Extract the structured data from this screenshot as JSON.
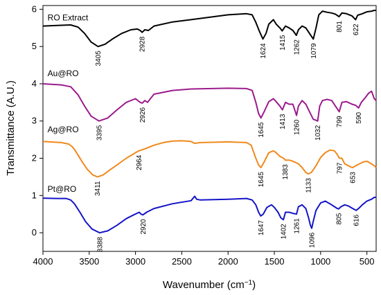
{
  "chart_data": {
    "type": "line",
    "title": "",
    "xlabel_main": "Wavenumber (cm",
    "xlabel_sup": "−1",
    "xlabel_end": ")",
    "ylabel": "Transmittance (A.U.)",
    "xlim": [
      4000,
      400
    ],
    "ylim": [
      -0.5,
      6.1
    ],
    "x_reversed": true,
    "grid": false,
    "legend": "none",
    "x_ticks": [
      4000,
      3500,
      3000,
      2500,
      2000,
      1500,
      1000,
      500
    ],
    "y_ticks": [
      0,
      1,
      2,
      3,
      4,
      5,
      6
    ],
    "series": [
      {
        "name": "RO Extract",
        "color": "#000000",
        "label_pos": [
          3950,
          5.7
        ],
        "points": [
          [
            4000,
            5.55
          ],
          [
            3800,
            5.57
          ],
          [
            3700,
            5.58
          ],
          [
            3620,
            5.52
          ],
          [
            3550,
            5.35
          ],
          [
            3480,
            5.12
          ],
          [
            3405,
            5.0
          ],
          [
            3330,
            5.06
          ],
          [
            3250,
            5.2
          ],
          [
            3150,
            5.35
          ],
          [
            3050,
            5.45
          ],
          [
            2980,
            5.47
          ],
          [
            2950,
            5.43
          ],
          [
            2928,
            5.38
          ],
          [
            2900,
            5.45
          ],
          [
            2860,
            5.43
          ],
          [
            2800,
            5.55
          ],
          [
            2600,
            5.66
          ],
          [
            2400,
            5.72
          ],
          [
            2000,
            5.85
          ],
          [
            1800,
            5.88
          ],
          [
            1740,
            5.85
          ],
          [
            1700,
            5.65
          ],
          [
            1660,
            5.4
          ],
          [
            1624,
            5.2
          ],
          [
            1590,
            5.35
          ],
          [
            1560,
            5.6
          ],
          [
            1510,
            5.72
          ],
          [
            1480,
            5.6
          ],
          [
            1440,
            5.5
          ],
          [
            1415,
            5.42
          ],
          [
            1380,
            5.55
          ],
          [
            1340,
            5.5
          ],
          [
            1300,
            5.43
          ],
          [
            1262,
            5.3
          ],
          [
            1240,
            5.45
          ],
          [
            1200,
            5.55
          ],
          [
            1160,
            5.5
          ],
          [
            1120,
            5.35
          ],
          [
            1079,
            5.2
          ],
          [
            1050,
            5.5
          ],
          [
            1020,
            5.85
          ],
          [
            980,
            5.95
          ],
          [
            930,
            5.92
          ],
          [
            880,
            5.9
          ],
          [
            840,
            5.87
          ],
          [
            801,
            5.8
          ],
          [
            770,
            5.9
          ],
          [
            720,
            5.88
          ],
          [
            660,
            5.82
          ],
          [
            622,
            5.72
          ],
          [
            600,
            5.84
          ],
          [
            550,
            5.88
          ],
          [
            500,
            5.93
          ],
          [
            450,
            5.95
          ],
          [
            420,
            5.97
          ],
          [
            400,
            5.97
          ]
        ]
      },
      {
        "name": "Au@RO",
        "color": "#9b1a8c",
        "label_pos": [
          3950,
          4.2
        ],
        "points": [
          [
            4000,
            4.0
          ],
          [
            3800,
            3.97
          ],
          [
            3700,
            3.92
          ],
          [
            3620,
            3.7
          ],
          [
            3550,
            3.4
          ],
          [
            3480,
            3.13
          ],
          [
            3395,
            3.0
          ],
          [
            3300,
            3.08
          ],
          [
            3200,
            3.3
          ],
          [
            3100,
            3.5
          ],
          [
            3000,
            3.6
          ],
          [
            2950,
            3.5
          ],
          [
            2926,
            3.48
          ],
          [
            2900,
            3.55
          ],
          [
            2870,
            3.5
          ],
          [
            2800,
            3.72
          ],
          [
            2600,
            3.82
          ],
          [
            2400,
            3.86
          ],
          [
            2000,
            3.88
          ],
          [
            1800,
            3.87
          ],
          [
            1740,
            3.82
          ],
          [
            1700,
            3.5
          ],
          [
            1670,
            3.2
          ],
          [
            1645,
            3.08
          ],
          [
            1610,
            3.25
          ],
          [
            1560,
            3.52
          ],
          [
            1510,
            3.6
          ],
          [
            1480,
            3.52
          ],
          [
            1440,
            3.4
          ],
          [
            1413,
            3.3
          ],
          [
            1380,
            3.5
          ],
          [
            1340,
            3.45
          ],
          [
            1300,
            3.45
          ],
          [
            1260,
            3.15
          ],
          [
            1240,
            3.4
          ],
          [
            1200,
            3.55
          ],
          [
            1160,
            3.45
          ],
          [
            1120,
            3.25
          ],
          [
            1080,
            3.05
          ],
          [
            1050,
            3.02
          ],
          [
            1032,
            3.0
          ],
          [
            1010,
            3.4
          ],
          [
            980,
            3.55
          ],
          [
            930,
            3.58
          ],
          [
            880,
            3.55
          ],
          [
            840,
            3.4
          ],
          [
            799,
            3.25
          ],
          [
            770,
            3.5
          ],
          [
            720,
            3.52
          ],
          [
            660,
            3.45
          ],
          [
            620,
            3.42
          ],
          [
            590,
            3.35
          ],
          [
            560,
            3.5
          ],
          [
            520,
            3.62
          ],
          [
            480,
            3.75
          ],
          [
            450,
            3.8
          ],
          [
            420,
            3.6
          ],
          [
            400,
            3.55
          ]
        ]
      },
      {
        "name": "Ag@RO",
        "color": "#f0891b",
        "label_pos": [
          3950,
          2.7
        ],
        "points": [
          [
            4000,
            2.45
          ],
          [
            3800,
            2.42
          ],
          [
            3720,
            2.38
          ],
          [
            3680,
            2.3
          ],
          [
            3650,
            2.2
          ],
          [
            3620,
            2.08
          ],
          [
            3580,
            1.92
          ],
          [
            3520,
            1.7
          ],
          [
            3460,
            1.55
          ],
          [
            3411,
            1.5
          ],
          [
            3350,
            1.55
          ],
          [
            3280,
            1.68
          ],
          [
            3200,
            1.82
          ],
          [
            3100,
            2.0
          ],
          [
            3000,
            2.15
          ],
          [
            2964,
            2.2
          ],
          [
            2900,
            2.25
          ],
          [
            2800,
            2.35
          ],
          [
            2700,
            2.42
          ],
          [
            2600,
            2.46
          ],
          [
            2500,
            2.47
          ],
          [
            2400,
            2.45
          ],
          [
            2360,
            2.4
          ],
          [
            2300,
            2.42
          ],
          [
            2000,
            2.44
          ],
          [
            1800,
            2.42
          ],
          [
            1750,
            2.35
          ],
          [
            1700,
            2.0
          ],
          [
            1670,
            1.82
          ],
          [
            1645,
            1.75
          ],
          [
            1610,
            1.9
          ],
          [
            1560,
            2.15
          ],
          [
            1510,
            2.2
          ],
          [
            1480,
            2.15
          ],
          [
            1440,
            2.05
          ],
          [
            1400,
            2.0
          ],
          [
            1383,
            1.95
          ],
          [
            1340,
            1.95
          ],
          [
            1300,
            1.92
          ],
          [
            1240,
            1.85
          ],
          [
            1200,
            1.75
          ],
          [
            1160,
            1.62
          ],
          [
            1133,
            1.58
          ],
          [
            1100,
            1.62
          ],
          [
            1050,
            1.8
          ],
          [
            1000,
            2.02
          ],
          [
            950,
            2.15
          ],
          [
            900,
            2.22
          ],
          [
            850,
            2.2
          ],
          [
            820,
            2.1
          ],
          [
            797,
            2.0
          ],
          [
            770,
            2.0
          ],
          [
            740,
            1.85
          ],
          [
            700,
            1.8
          ],
          [
            670,
            1.76
          ],
          [
            653,
            1.75
          ],
          [
            620,
            1.8
          ],
          [
            580,
            1.85
          ],
          [
            540,
            1.9
          ],
          [
            500,
            1.92
          ],
          [
            450,
            1.85
          ],
          [
            420,
            1.8
          ],
          [
            400,
            1.75
          ]
        ]
      },
      {
        "name": "Pt@RO",
        "color": "#1414c8",
        "label_pos": [
          3950,
          1.1
        ],
        "points": [
          [
            4000,
            0.93
          ],
          [
            3850,
            0.92
          ],
          [
            3750,
            0.92
          ],
          [
            3700,
            0.88
          ],
          [
            3660,
            0.78
          ],
          [
            3600,
            0.55
          ],
          [
            3540,
            0.3
          ],
          [
            3470,
            0.1
          ],
          [
            3388,
            0.0
          ],
          [
            3300,
            0.05
          ],
          [
            3200,
            0.2
          ],
          [
            3100,
            0.38
          ],
          [
            3020,
            0.48
          ],
          [
            2960,
            0.55
          ],
          [
            2940,
            0.5
          ],
          [
            2920,
            0.48
          ],
          [
            2880,
            0.55
          ],
          [
            2800,
            0.65
          ],
          [
            2600,
            0.78
          ],
          [
            2400,
            0.86
          ],
          [
            2360,
            0.98
          ],
          [
            2340,
            0.9
          ],
          [
            2300,
            0.88
          ],
          [
            2000,
            0.9
          ],
          [
            1800,
            0.92
          ],
          [
            1740,
            0.88
          ],
          [
            1700,
            0.75
          ],
          [
            1670,
            0.55
          ],
          [
            1647,
            0.45
          ],
          [
            1620,
            0.5
          ],
          [
            1580,
            0.68
          ],
          [
            1530,
            0.75
          ],
          [
            1500,
            0.68
          ],
          [
            1460,
            0.55
          ],
          [
            1430,
            0.4
          ],
          [
            1402,
            0.35
          ],
          [
            1380,
            0.55
          ],
          [
            1340,
            0.55
          ],
          [
            1300,
            0.52
          ],
          [
            1261,
            0.5
          ],
          [
            1240,
            0.7
          ],
          [
            1200,
            0.75
          ],
          [
            1160,
            0.65
          ],
          [
            1130,
            0.4
          ],
          [
            1110,
            0.2
          ],
          [
            1096,
            0.12
          ],
          [
            1080,
            0.3
          ],
          [
            1050,
            0.6
          ],
          [
            1000,
            0.8
          ],
          [
            950,
            0.85
          ],
          [
            900,
            0.78
          ],
          [
            850,
            0.7
          ],
          [
            820,
            0.65
          ],
          [
            805,
            0.64
          ],
          [
            780,
            0.7
          ],
          [
            740,
            0.75
          ],
          [
            700,
            0.72
          ],
          [
            660,
            0.66
          ],
          [
            616,
            0.6
          ],
          [
            590,
            0.65
          ],
          [
            550,
            0.75
          ],
          [
            500,
            0.85
          ],
          [
            450,
            0.9
          ],
          [
            420,
            0.95
          ],
          [
            400,
            0.95
          ]
        ]
      }
    ],
    "annotations": [
      {
        "text": "3405",
        "x": 3405,
        "y": 5.0
      },
      {
        "text": "2928",
        "x": 2928,
        "y": 5.38
      },
      {
        "text": "1624",
        "x": 1624,
        "y": 5.2
      },
      {
        "text": "1415",
        "x": 1415,
        "y": 5.42
      },
      {
        "text": "1262",
        "x": 1262,
        "y": 5.3
      },
      {
        "text": "1079",
        "x": 1079,
        "y": 5.2
      },
      {
        "text": "801",
        "x": 801,
        "y": 5.8
      },
      {
        "text": "622",
        "x": 622,
        "y": 5.72
      },
      {
        "text": "3395",
        "x": 3395,
        "y": 3.0
      },
      {
        "text": "2926",
        "x": 2926,
        "y": 3.48
      },
      {
        "text": "1645",
        "x": 1645,
        "y": 3.08
      },
      {
        "text": "1413",
        "x": 1413,
        "y": 3.3
      },
      {
        "text": "1260",
        "x": 1260,
        "y": 3.15
      },
      {
        "text": "1032",
        "x": 1032,
        "y": 3.0
      },
      {
        "text": "799",
        "x": 799,
        "y": 3.25
      },
      {
        "text": "590",
        "x": 590,
        "y": 3.35
      },
      {
        "text": "3411",
        "x": 3411,
        "y": 1.5
      },
      {
        "text": "2964",
        "x": 2964,
        "y": 2.2
      },
      {
        "text": "1645",
        "x": 1645,
        "y": 1.75
      },
      {
        "text": "1383",
        "x": 1383,
        "y": 1.95
      },
      {
        "text": "1133",
        "x": 1133,
        "y": 1.58
      },
      {
        "text": "797",
        "x": 797,
        "y": 2.0
      },
      {
        "text": "653",
        "x": 653,
        "y": 1.75
      },
      {
        "text": "3388",
        "x": 3388,
        "y": 0.0
      },
      {
        "text": "2920",
        "x": 2920,
        "y": 0.48
      },
      {
        "text": "1647",
        "x": 1647,
        "y": 0.45
      },
      {
        "text": "1402",
        "x": 1402,
        "y": 0.35
      },
      {
        "text": "1261",
        "x": 1261,
        "y": 0.5
      },
      {
        "text": "1096",
        "x": 1096,
        "y": 0.12
      },
      {
        "text": "805",
        "x": 805,
        "y": 0.64
      },
      {
        "text": "616",
        "x": 616,
        "y": 0.6
      }
    ]
  }
}
